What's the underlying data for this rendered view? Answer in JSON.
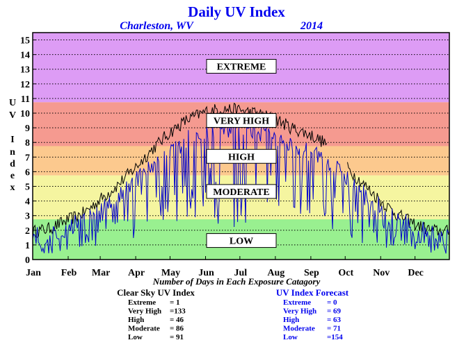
{
  "header": {
    "title": "Daily UV Index",
    "location": "Charleston, WV",
    "year": "2014"
  },
  "chart_data": {
    "type": "line",
    "title": "Daily UV Index",
    "xlabel": "",
    "ylabel": "UV Index",
    "ylim": [
      0,
      15
    ],
    "y_ticks": [
      "0",
      "1",
      "2",
      "3",
      "4",
      "5",
      "6",
      "7",
      "8",
      "9",
      "10",
      "11",
      "12",
      "13",
      "14",
      "15"
    ],
    "x_ticks": [
      "Jan",
      "Feb",
      "Mar",
      "Apr",
      "May",
      "Jun",
      "Jul",
      "Aug",
      "Sep",
      "Oct",
      "Nov",
      "Dec"
    ],
    "grid": true,
    "bands": [
      {
        "label": "LOW",
        "from": 0,
        "to": 2.75,
        "color": "#99f090"
      },
      {
        "label": "MODERATE",
        "from": 2.75,
        "to": 5.75,
        "color": "#f5f5a0"
      },
      {
        "label": "HIGH",
        "from": 5.75,
        "to": 7.75,
        "color": "#fcc98e"
      },
      {
        "label": "VERY HIGH",
        "from": 7.75,
        "to": 10.75,
        "color": "#f59a90"
      },
      {
        "label": "EXTREME",
        "from": 10.75,
        "to": 15.5,
        "color": "#dd9cf5"
      }
    ],
    "band_labels": [
      {
        "text": "EXTREME",
        "y": 13.2
      },
      {
        "text": "VERY HIGH",
        "y": 9.5
      },
      {
        "text": "HIGH",
        "y": 7.05
      },
      {
        "text": "MODERATE",
        "y": 4.65
      },
      {
        "text": "LOW",
        "y": 1.3
      }
    ],
    "series": [
      {
        "name": "Clear Sky UV Index",
        "color": "#000000",
        "anchors": [
          [
            1,
            1.9
          ],
          [
            15,
            2.1
          ],
          [
            32,
            2.7
          ],
          [
            46,
            3.2
          ],
          [
            60,
            4.1
          ],
          [
            74,
            5.0
          ],
          [
            91,
            6.3
          ],
          [
            105,
            7.5
          ],
          [
            121,
            8.7
          ],
          [
            135,
            9.5
          ],
          [
            152,
            10.1
          ],
          [
            166,
            10.3
          ],
          [
            182,
            10.2
          ],
          [
            196,
            10.0
          ],
          [
            213,
            9.6
          ],
          [
            227,
            9.0
          ],
          [
            244,
            8.5
          ],
          [
            258,
            7.9
          ],
          [
            274,
            6.4
          ],
          [
            288,
            5.3
          ],
          [
            305,
            4.0
          ],
          [
            319,
            3.1
          ],
          [
            335,
            2.4
          ],
          [
            349,
            2.0
          ],
          [
            365,
            1.9
          ]
        ],
        "gap": [
          259,
          275
        ]
      },
      {
        "name": "UV Index Forecast",
        "color": "#0000cc",
        "anchors": [
          [
            1,
            1.5
          ],
          [
            15,
            1.5
          ],
          [
            32,
            2.1
          ],
          [
            46,
            2.5
          ],
          [
            60,
            3.4
          ],
          [
            74,
            4.2
          ],
          [
            91,
            5.4
          ],
          [
            105,
            6.4
          ],
          [
            121,
            7.3
          ],
          [
            135,
            8.0
          ],
          [
            152,
            8.6
          ],
          [
            166,
            8.9
          ],
          [
            182,
            8.8
          ],
          [
            196,
            8.6
          ],
          [
            213,
            8.3
          ],
          [
            227,
            7.8
          ],
          [
            244,
            7.1
          ],
          [
            258,
            6.6
          ],
          [
            274,
            5.5
          ],
          [
            288,
            4.6
          ],
          [
            305,
            3.4
          ],
          [
            319,
            2.7
          ],
          [
            335,
            2.0
          ],
          [
            349,
            1.6
          ],
          [
            365,
            1.5
          ]
        ]
      }
    ],
    "exposure_caption": "Number of Days in Each Exposure Catagory",
    "clear_sky": {
      "title": "Clear Sky UV Index",
      "rows": [
        {
          "label": "Extreme",
          "value": "= 1"
        },
        {
          "label": "Very High",
          "value": "=133"
        },
        {
          "label": "High",
          "value": "= 46"
        },
        {
          "label": "Moderate",
          "value": "= 86"
        },
        {
          "label": "Low",
          "value": "= 91"
        }
      ]
    },
    "forecast": {
      "title": "UV Index Forecast",
      "rows": [
        {
          "label": "Extreme",
          "value": "= 0"
        },
        {
          "label": "Very High",
          "value": "= 69"
        },
        {
          "label": "High",
          "value": "= 63"
        },
        {
          "label": "Moderate",
          "value": "= 71"
        },
        {
          "label": "Low",
          "value": "=154"
        }
      ]
    }
  }
}
